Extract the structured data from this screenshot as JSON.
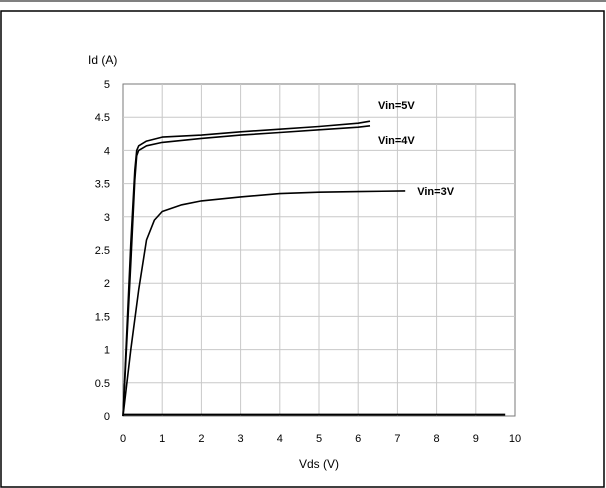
{
  "chart_data": {
    "type": "line",
    "title": "",
    "xlabel": "Vds (V)",
    "ylabel": "Id (A)",
    "xlim": [
      0,
      10
    ],
    "ylim": [
      0,
      5
    ],
    "x_ticks": [
      "0",
      "1",
      "2",
      "3",
      "4",
      "5",
      "6",
      "7",
      "8",
      "9",
      "10"
    ],
    "y_ticks": [
      "0",
      "0.5",
      "1",
      "1.5",
      "2",
      "2.5",
      "3",
      "3.5",
      "4",
      "4.5",
      "5"
    ],
    "x_tick_values": [
      0,
      1,
      2,
      3,
      4,
      5,
      6,
      7,
      8,
      9,
      10
    ],
    "y_tick_values": [
      0,
      0.5,
      1,
      1.5,
      2,
      2.5,
      3,
      3.5,
      4,
      4.5,
      5
    ],
    "grid": true,
    "legend": "inline labels at line ends",
    "series": [
      {
        "name": "Vin=5V",
        "x": [
          0,
          0.2,
          0.3,
          0.35,
          0.4,
          0.6,
          1.0,
          2.0,
          3.0,
          4.0,
          5.0,
          6.0,
          6.3
        ],
        "y": [
          0,
          2.6,
          3.7,
          4.0,
          4.07,
          4.14,
          4.2,
          4.23,
          4.28,
          4.32,
          4.36,
          4.41,
          4.44
        ]
      },
      {
        "name": "Vin=4V",
        "x": [
          0,
          0.2,
          0.3,
          0.35,
          0.4,
          0.6,
          1.0,
          2.0,
          3.0,
          4.0,
          5.0,
          6.0,
          6.3
        ],
        "y": [
          0,
          2.3,
          3.55,
          3.92,
          4.0,
          4.07,
          4.12,
          4.18,
          4.23,
          4.27,
          4.31,
          4.35,
          4.37
        ]
      },
      {
        "name": "Vin=3V",
        "x": [
          0,
          0.2,
          0.4,
          0.6,
          0.8,
          1.0,
          1.5,
          2.0,
          3.0,
          4.0,
          5.0,
          6.0,
          7.2
        ],
        "y": [
          0,
          1.0,
          1.9,
          2.65,
          2.95,
          3.08,
          3.18,
          3.24,
          3.3,
          3.35,
          3.37,
          3.38,
          3.39
        ]
      }
    ],
    "baseline": {
      "x": [
        0,
        9.75
      ],
      "y": [
        0.02,
        0.02
      ]
    },
    "line_color": "#000000",
    "grid_color": "#c8c8c8"
  }
}
